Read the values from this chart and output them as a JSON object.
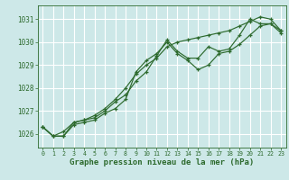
{
  "bg_color": "#cde8e8",
  "line_color": "#2d6a2d",
  "grid_color": "#b0d4d4",
  "text_color": "#2d6a2d",
  "xlabel": "Graphe pression niveau de la mer (hPa)",
  "ylim": [
    1025.4,
    1031.6
  ],
  "xlim": [
    -0.5,
    23.5
  ],
  "yticks": [
    1026,
    1027,
    1028,
    1029,
    1030,
    1031
  ],
  "xticks": [
    0,
    1,
    2,
    3,
    4,
    5,
    6,
    7,
    8,
    9,
    10,
    11,
    12,
    13,
    14,
    15,
    16,
    17,
    18,
    19,
    20,
    21,
    22,
    23
  ],
  "series": [
    [
      1026.3,
      1025.9,
      1025.9,
      1026.5,
      1026.6,
      1026.7,
      1027.0,
      1027.4,
      1027.7,
      1028.3,
      1028.7,
      1029.4,
      1030.1,
      1029.6,
      1029.3,
      1029.3,
      1029.8,
      1029.6,
      1029.7,
      1030.3,
      1031.0,
      1030.8,
      1030.8,
      1030.5
    ],
    [
      1026.3,
      1025.9,
      1025.9,
      1026.4,
      1026.5,
      1026.6,
      1026.9,
      1027.1,
      1027.5,
      1028.7,
      1029.2,
      1029.5,
      1030.0,
      1029.5,
      1029.2,
      1028.8,
      1029.0,
      1029.5,
      1029.6,
      1029.9,
      1030.3,
      1030.7,
      1030.8,
      1030.4
    ],
    [
      1026.3,
      1025.9,
      1026.1,
      1026.5,
      1026.6,
      1026.8,
      1027.1,
      1027.5,
      1028.0,
      1028.6,
      1029.0,
      1029.3,
      1029.8,
      1030.0,
      1030.1,
      1030.2,
      1030.3,
      1030.4,
      1030.5,
      1030.7,
      1030.9,
      1031.1,
      1031.0,
      1030.5
    ]
  ]
}
